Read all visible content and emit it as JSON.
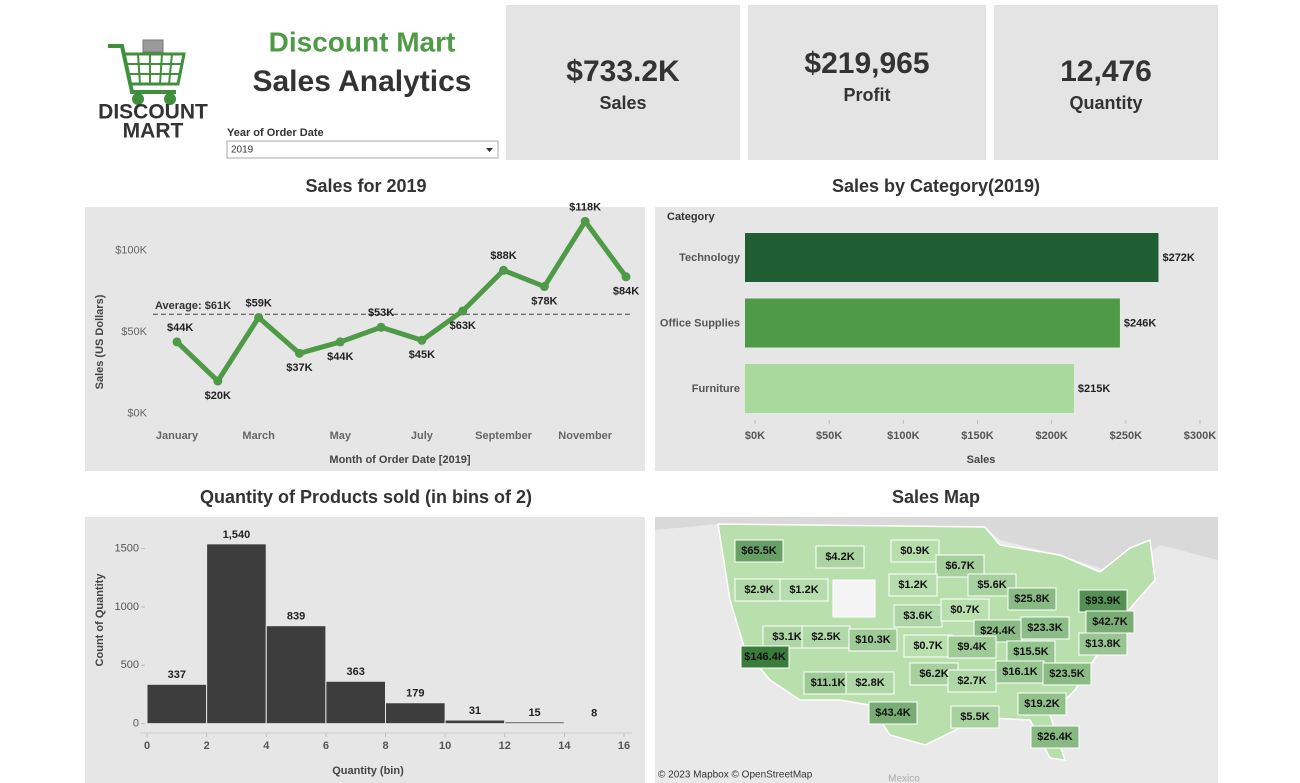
{
  "header": {
    "logo": [
      "DISCOUNT",
      "MART"
    ],
    "title": "Discount Mart",
    "subtitle": "Sales Analytics",
    "filter_label": "Year of Order Date",
    "filter_value": "2019"
  },
  "kpis": [
    {
      "value": "$733.2K",
      "label": "Sales"
    },
    {
      "value": "$219,965",
      "label": "Profit"
    },
    {
      "value": "12,476",
      "label": "Quantity"
    }
  ],
  "chart_data": [
    {
      "type": "line",
      "title": "Sales for 2019",
      "color": "#4e9a47",
      "categories": [
        "January",
        null,
        "March",
        null,
        "May",
        null,
        "July",
        null,
        "September",
        null,
        "November",
        null
      ],
      "values": [
        44000,
        20000,
        59000,
        37000,
        44000,
        53000,
        45000,
        63000,
        88000,
        78000,
        118000,
        84000
      ],
      "value_labels": [
        "$44K",
        "$20K",
        "$59K",
        "$37K",
        "$44K",
        "$53K",
        "$45K",
        "$63K",
        "$88K",
        "$78K",
        "$118K",
        "$84K"
      ],
      "ylim": [
        -7000,
        125000
      ],
      "yticks": [
        {
          "value": 0,
          "label": "$0K"
        },
        {
          "value": 50000,
          "label": "$50K"
        },
        {
          "value": 100000,
          "label": "$100K"
        }
      ],
      "y_label": "Sales (US Dollars)",
      "x_label": "Month of Order Date [2019]",
      "reference_line": {
        "value": 61000,
        "label": "Average: $61K"
      }
    },
    {
      "type": "bar",
      "orientation": "horizontal",
      "title": "Sales by Category(2019)",
      "categories": [
        "Technology",
        "Office Supplies",
        "Furniture"
      ],
      "values": [
        272000,
        246000,
        215000
      ],
      "value_labels": [
        "$272K",
        "$246K",
        "$215K"
      ],
      "colors": [
        "#1f5e32",
        "#4e9a47",
        "#a8da9b"
      ],
      "xlim": [
        0,
        300000
      ],
      "xticks": [
        {
          "value": 0,
          "label": "$0K"
        },
        {
          "value": 50000,
          "label": "$50K"
        },
        {
          "value": 100000,
          "label": "$100K"
        },
        {
          "value": 150000,
          "label": "$150K"
        },
        {
          "value": 200000,
          "label": "$200K"
        },
        {
          "value": 250000,
          "label": "$250K"
        },
        {
          "value": 300000,
          "label": "$300K"
        }
      ],
      "x_label": "Sales",
      "y_label": "Category"
    },
    {
      "type": "histogram",
      "title": "Quantity of Products sold (in bins of 2)",
      "color": "#3d3d3d",
      "bins": [
        0,
        2,
        4,
        6,
        8,
        10,
        12,
        14,
        16
      ],
      "values": [
        337,
        1540,
        839,
        363,
        179,
        31,
        15,
        8
      ],
      "value_labels": [
        "337",
        "1,540",
        "839",
        "363",
        "179",
        "31",
        "15",
        "8"
      ],
      "xlim": [
        0,
        16
      ],
      "xticks": [
        0,
        2,
        4,
        6,
        8,
        10,
        12,
        14,
        16
      ],
      "ylim": [
        -80,
        1770
      ],
      "yticks": [
        0,
        500,
        1000,
        1500
      ],
      "x_label": "Quantity (bin)",
      "y_label": "Count of Quantity"
    },
    {
      "type": "map",
      "title": "Sales Map",
      "color_range": [
        "#c3e6b8",
        "#3a7c3c"
      ],
      "values": [
        65500,
        4200,
        900,
        6700,
        2900,
        1200,
        1200,
        5600,
        25800,
        93900,
        3600,
        700,
        42700,
        3100,
        2500,
        10300,
        24400,
        23300,
        700,
        9400,
        13800,
        15500,
        146400,
        16100,
        23500,
        6200,
        2700,
        11100,
        2800,
        19200,
        43400,
        5500,
        26400
      ],
      "value_labels": [
        "$65.5K",
        "$4.2K",
        "$0.9K",
        "$6.7K",
        "$2.9K",
        "$1.2K",
        "$1.2K",
        "$5.6K",
        "$25.8K",
        "$93.9K",
        "$3.6K",
        "$0.7K",
        "$42.7K",
        "$3.1K",
        "$2.5K",
        "$10.3K",
        "$24.4K",
        "$23.3K",
        "$0.7K",
        "$9.4K",
        "$13.8K",
        "$15.5K",
        "$146.4K",
        "$16.1K",
        "$23.5K",
        "$6.2K",
        "$2.7K",
        "$11.1K",
        "$2.8K",
        "$19.2K",
        "$43.4K",
        "$5.5K",
        "$26.4K"
      ],
      "attribution": "© 2023 Mapbox © OpenStreetMap",
      "annotations": [
        "Mexico"
      ]
    }
  ]
}
